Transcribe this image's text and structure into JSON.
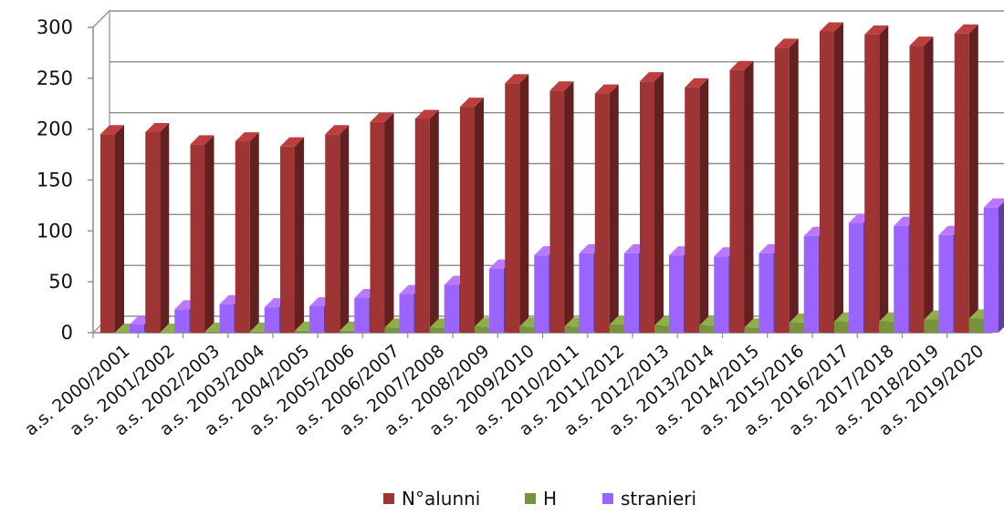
{
  "chart_data": {
    "type": "bar",
    "title": "",
    "xlabel": "",
    "ylabel": "",
    "ylim": [
      0,
      300
    ],
    "yticks": [
      0,
      50,
      100,
      150,
      200,
      250,
      300
    ],
    "grid": true,
    "legend_position": "bottom",
    "categories": [
      "a.s. 2000/2001",
      "a.s. 2001/2002",
      "a.s. 2002/2003",
      "a.s. 2003/2004",
      "a.s. 2004/2005",
      "a.s. 2005/2006",
      "a.s. 2006/2007",
      "a.s. 2007/2008",
      "a.s. 2008/2009",
      "a.s. 2009/2010",
      "a.s. 2010/2011",
      "a.s. 2011/2012",
      "a.s. 2012/2013",
      "a.s. 2013/2014",
      "a.s. 2014/2015",
      "a.s. 2015/2016",
      "a.s. 2016/2017",
      "a.s. 2017/2018",
      "a.s. 2018/2019",
      "a.s. 2019/2020"
    ],
    "series": [
      {
        "name": "N°alunni",
        "color": "#9e3434",
        "values": [
          195,
          197,
          185,
          188,
          183,
          195,
          207,
          210,
          222,
          245,
          238,
          235,
          247,
          241,
          258,
          280,
          296,
          293,
          282,
          294
        ]
      },
      {
        "name": "H",
        "color": "#77933c",
        "values": [
          0,
          0,
          1,
          1,
          2,
          2,
          5,
          5,
          6,
          6,
          6,
          8,
          7,
          7,
          5,
          10,
          11,
          11,
          13,
          14
        ]
      },
      {
        "name": "stranieri",
        "color": "#9b64ff",
        "values": [
          8,
          23,
          28,
          25,
          26,
          34,
          38,
          47,
          63,
          76,
          78,
          78,
          76,
          75,
          78,
          95,
          108,
          105,
          96,
          123
        ]
      }
    ]
  }
}
